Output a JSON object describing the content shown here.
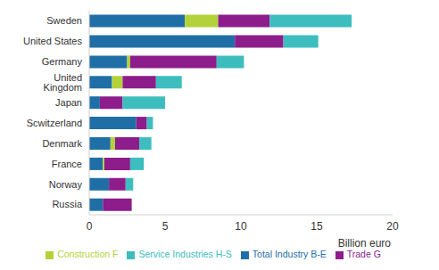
{
  "chart_data": {
    "type": "bar",
    "orientation": "horizontal",
    "stacked": true,
    "grid": false,
    "legend": "bottom",
    "x_label": "Billion euro",
    "categories": [
      "Sweden",
      "United States",
      "Germany",
      "United Kingdom",
      "Japan",
      "Scwitzerland",
      "Denmark",
      "France",
      "Norway",
      "Russia"
    ],
    "xlim": [
      0,
      20
    ],
    "xticks": [
      0,
      5,
      10,
      15,
      20
    ],
    "series": [
      {
        "name": "Total Industry B-E",
        "color": "#1f6fa6",
        "values": [
          6.3,
          9.6,
          2.5,
          1.5,
          0.7,
          3.1,
          1.4,
          0.9,
          1.3,
          0.9
        ]
      },
      {
        "name": "Construction F",
        "color": "#b3d23a",
        "values": [
          2.2,
          0,
          0.2,
          0.7,
          0,
          0,
          0.3,
          0.1,
          0,
          0
        ]
      },
      {
        "name": "Trade G",
        "color": "#8c1d8a",
        "values": [
          3.4,
          3.2,
          5.7,
          2.2,
          1.5,
          0.7,
          1.6,
          1.7,
          1.1,
          1.9
        ]
      },
      {
        "name": "Service Industries H-S",
        "color": "#3dbdbd",
        "values": [
          5.4,
          2.3,
          1.8,
          1.7,
          2.8,
          0.4,
          0.8,
          0.9,
          0.5,
          0
        ]
      }
    ]
  }
}
